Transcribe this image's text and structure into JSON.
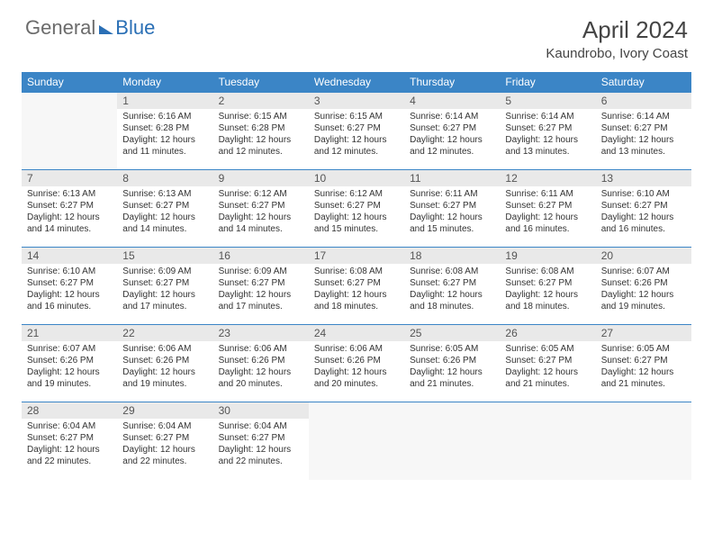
{
  "brand": {
    "general": "General",
    "blue": "Blue"
  },
  "title": "April 2024",
  "location": "Kaundrobo, Ivory Coast",
  "colors": {
    "header_bg": "#3b85c6",
    "header_text": "#ffffff",
    "daynum_bg": "#e9e9e9",
    "brand_gray": "#6b6b6b",
    "brand_blue": "#2a6fb5",
    "border": "#3b85c6"
  },
  "weekdays": [
    "Sunday",
    "Monday",
    "Tuesday",
    "Wednesday",
    "Thursday",
    "Friday",
    "Saturday"
  ],
  "layout": {
    "first_day_column": 1,
    "weeks": 5
  },
  "days": [
    {
      "n": 1,
      "sunrise": "6:16 AM",
      "sunset": "6:28 PM",
      "daylight": "12 hours and 11 minutes."
    },
    {
      "n": 2,
      "sunrise": "6:15 AM",
      "sunset": "6:28 PM",
      "daylight": "12 hours and 12 minutes."
    },
    {
      "n": 3,
      "sunrise": "6:15 AM",
      "sunset": "6:27 PM",
      "daylight": "12 hours and 12 minutes."
    },
    {
      "n": 4,
      "sunrise": "6:14 AM",
      "sunset": "6:27 PM",
      "daylight": "12 hours and 12 minutes."
    },
    {
      "n": 5,
      "sunrise": "6:14 AM",
      "sunset": "6:27 PM",
      "daylight": "12 hours and 13 minutes."
    },
    {
      "n": 6,
      "sunrise": "6:14 AM",
      "sunset": "6:27 PM",
      "daylight": "12 hours and 13 minutes."
    },
    {
      "n": 7,
      "sunrise": "6:13 AM",
      "sunset": "6:27 PM",
      "daylight": "12 hours and 14 minutes."
    },
    {
      "n": 8,
      "sunrise": "6:13 AM",
      "sunset": "6:27 PM",
      "daylight": "12 hours and 14 minutes."
    },
    {
      "n": 9,
      "sunrise": "6:12 AM",
      "sunset": "6:27 PM",
      "daylight": "12 hours and 14 minutes."
    },
    {
      "n": 10,
      "sunrise": "6:12 AM",
      "sunset": "6:27 PM",
      "daylight": "12 hours and 15 minutes."
    },
    {
      "n": 11,
      "sunrise": "6:11 AM",
      "sunset": "6:27 PM",
      "daylight": "12 hours and 15 minutes."
    },
    {
      "n": 12,
      "sunrise": "6:11 AM",
      "sunset": "6:27 PM",
      "daylight": "12 hours and 16 minutes."
    },
    {
      "n": 13,
      "sunrise": "6:10 AM",
      "sunset": "6:27 PM",
      "daylight": "12 hours and 16 minutes."
    },
    {
      "n": 14,
      "sunrise": "6:10 AM",
      "sunset": "6:27 PM",
      "daylight": "12 hours and 16 minutes."
    },
    {
      "n": 15,
      "sunrise": "6:09 AM",
      "sunset": "6:27 PM",
      "daylight": "12 hours and 17 minutes."
    },
    {
      "n": 16,
      "sunrise": "6:09 AM",
      "sunset": "6:27 PM",
      "daylight": "12 hours and 17 minutes."
    },
    {
      "n": 17,
      "sunrise": "6:08 AM",
      "sunset": "6:27 PM",
      "daylight": "12 hours and 18 minutes."
    },
    {
      "n": 18,
      "sunrise": "6:08 AM",
      "sunset": "6:27 PM",
      "daylight": "12 hours and 18 minutes."
    },
    {
      "n": 19,
      "sunrise": "6:08 AM",
      "sunset": "6:27 PM",
      "daylight": "12 hours and 18 minutes."
    },
    {
      "n": 20,
      "sunrise": "6:07 AM",
      "sunset": "6:26 PM",
      "daylight": "12 hours and 19 minutes."
    },
    {
      "n": 21,
      "sunrise": "6:07 AM",
      "sunset": "6:26 PM",
      "daylight": "12 hours and 19 minutes."
    },
    {
      "n": 22,
      "sunrise": "6:06 AM",
      "sunset": "6:26 PM",
      "daylight": "12 hours and 19 minutes."
    },
    {
      "n": 23,
      "sunrise": "6:06 AM",
      "sunset": "6:26 PM",
      "daylight": "12 hours and 20 minutes."
    },
    {
      "n": 24,
      "sunrise": "6:06 AM",
      "sunset": "6:26 PM",
      "daylight": "12 hours and 20 minutes."
    },
    {
      "n": 25,
      "sunrise": "6:05 AM",
      "sunset": "6:26 PM",
      "daylight": "12 hours and 21 minutes."
    },
    {
      "n": 26,
      "sunrise": "6:05 AM",
      "sunset": "6:27 PM",
      "daylight": "12 hours and 21 minutes."
    },
    {
      "n": 27,
      "sunrise": "6:05 AM",
      "sunset": "6:27 PM",
      "daylight": "12 hours and 21 minutes."
    },
    {
      "n": 28,
      "sunrise": "6:04 AM",
      "sunset": "6:27 PM",
      "daylight": "12 hours and 22 minutes."
    },
    {
      "n": 29,
      "sunrise": "6:04 AM",
      "sunset": "6:27 PM",
      "daylight": "12 hours and 22 minutes."
    },
    {
      "n": 30,
      "sunrise": "6:04 AM",
      "sunset": "6:27 PM",
      "daylight": "12 hours and 22 minutes."
    }
  ],
  "labels": {
    "sunrise": "Sunrise:",
    "sunset": "Sunset:",
    "daylight": "Daylight:"
  }
}
